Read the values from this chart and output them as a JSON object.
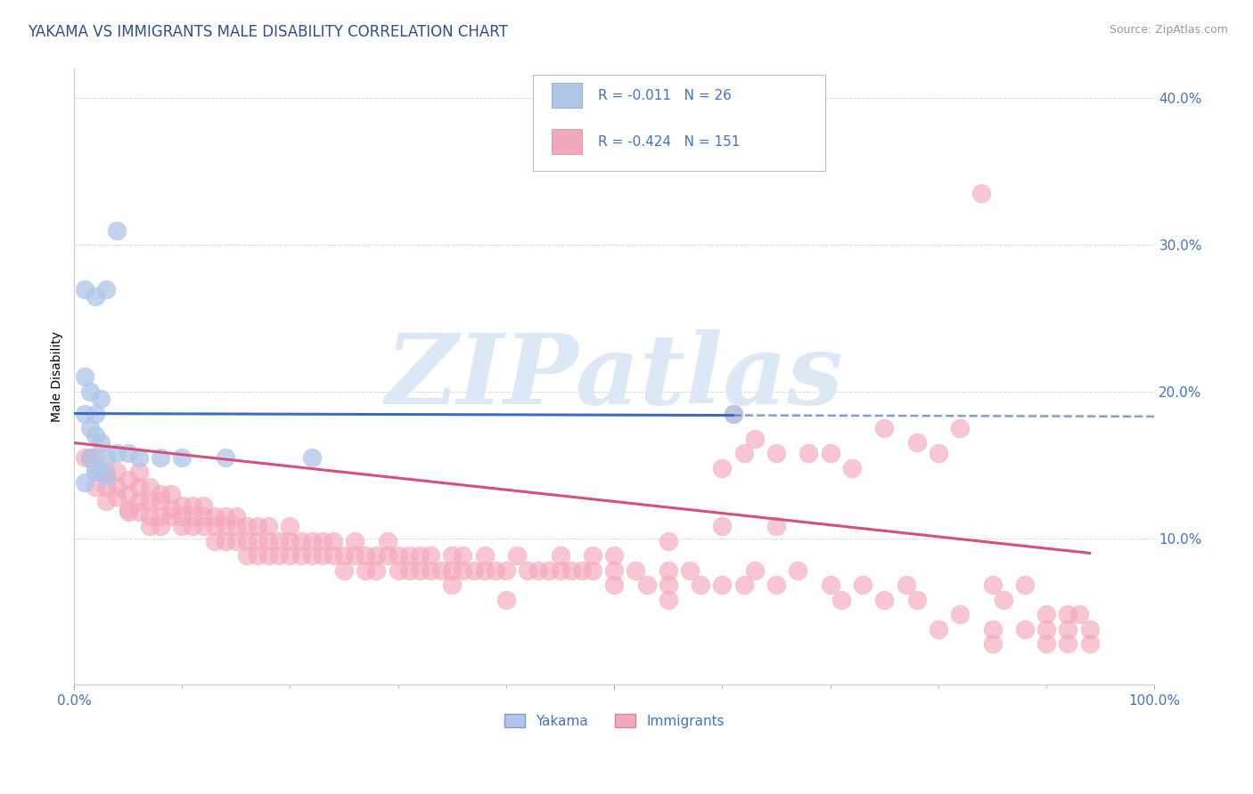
{
  "title": "YAKAMA VS IMMIGRANTS MALE DISABILITY CORRELATION CHART",
  "source": "Source: ZipAtlas.com",
  "ylabel": "Male Disability",
  "xlim": [
    0,
    1.0
  ],
  "ylim": [
    0,
    0.42
  ],
  "legend_r_yakama": "-0.011",
  "legend_n_yakama": "26",
  "legend_r_immigrants": "-0.424",
  "legend_n_immigrants": "151",
  "yakama_color": "#aec6e8",
  "immigrants_color": "#f4a8bb",
  "yakama_line_color": "#3B6BC4",
  "immigrants_line_color": "#D94F7A",
  "title_color": "#2F4F8F",
  "source_color": "#999999",
  "tick_color": "#4472C4",
  "watermark": "ZIPatlas",
  "watermark_color": "#dce8f5",
  "yakama_line_start": 0.0,
  "yakama_line_end_solid": 0.61,
  "yakama_line_y_at_0": 0.185,
  "yakama_line_y_at_1": 0.183,
  "immigrants_line_y_at_0": 0.165,
  "immigrants_line_y_at_1": 0.085,
  "yakama_scatter": [
    [
      0.02,
      0.185
    ],
    [
      0.04,
      0.31
    ],
    [
      0.03,
      0.27
    ],
    [
      0.01,
      0.27
    ],
    [
      0.02,
      0.265
    ],
    [
      0.01,
      0.21
    ],
    [
      0.015,
      0.2
    ],
    [
      0.025,
      0.195
    ],
    [
      0.01,
      0.185
    ],
    [
      0.015,
      0.175
    ],
    [
      0.02,
      0.17
    ],
    [
      0.025,
      0.165
    ],
    [
      0.015,
      0.155
    ],
    [
      0.03,
      0.155
    ],
    [
      0.02,
      0.148
    ],
    [
      0.04,
      0.158
    ],
    [
      0.05,
      0.158
    ],
    [
      0.02,
      0.145
    ],
    [
      0.01,
      0.138
    ],
    [
      0.03,
      0.142
    ],
    [
      0.06,
      0.155
    ],
    [
      0.08,
      0.155
    ],
    [
      0.1,
      0.155
    ],
    [
      0.14,
      0.155
    ],
    [
      0.22,
      0.155
    ],
    [
      0.61,
      0.185
    ]
  ],
  "immigrants_scatter": [
    [
      0.01,
      0.155
    ],
    [
      0.015,
      0.155
    ],
    [
      0.02,
      0.155
    ],
    [
      0.025,
      0.145
    ],
    [
      0.03,
      0.145
    ],
    [
      0.03,
      0.135
    ],
    [
      0.04,
      0.135
    ],
    [
      0.04,
      0.145
    ],
    [
      0.05,
      0.14
    ],
    [
      0.05,
      0.13
    ],
    [
      0.05,
      0.12
    ],
    [
      0.06,
      0.135
    ],
    [
      0.06,
      0.125
    ],
    [
      0.06,
      0.145
    ],
    [
      0.07,
      0.125
    ],
    [
      0.07,
      0.135
    ],
    [
      0.07,
      0.115
    ],
    [
      0.08,
      0.125
    ],
    [
      0.08,
      0.115
    ],
    [
      0.08,
      0.13
    ],
    [
      0.09,
      0.12
    ],
    [
      0.09,
      0.115
    ],
    [
      0.09,
      0.13
    ],
    [
      0.1,
      0.115
    ],
    [
      0.1,
      0.122
    ],
    [
      0.1,
      0.108
    ],
    [
      0.11,
      0.115
    ],
    [
      0.11,
      0.122
    ],
    [
      0.11,
      0.108
    ],
    [
      0.12,
      0.115
    ],
    [
      0.12,
      0.108
    ],
    [
      0.12,
      0.122
    ],
    [
      0.13,
      0.108
    ],
    [
      0.13,
      0.115
    ],
    [
      0.13,
      0.098
    ],
    [
      0.14,
      0.108
    ],
    [
      0.14,
      0.115
    ],
    [
      0.14,
      0.098
    ],
    [
      0.15,
      0.108
    ],
    [
      0.15,
      0.098
    ],
    [
      0.15,
      0.115
    ],
    [
      0.16,
      0.098
    ],
    [
      0.16,
      0.108
    ],
    [
      0.16,
      0.088
    ],
    [
      0.17,
      0.098
    ],
    [
      0.17,
      0.108
    ],
    [
      0.17,
      0.088
    ],
    [
      0.18,
      0.098
    ],
    [
      0.18,
      0.088
    ],
    [
      0.18,
      0.108
    ],
    [
      0.19,
      0.098
    ],
    [
      0.19,
      0.088
    ],
    [
      0.2,
      0.098
    ],
    [
      0.2,
      0.088
    ],
    [
      0.2,
      0.108
    ],
    [
      0.21,
      0.098
    ],
    [
      0.21,
      0.088
    ],
    [
      0.22,
      0.098
    ],
    [
      0.22,
      0.088
    ],
    [
      0.23,
      0.088
    ],
    [
      0.23,
      0.098
    ],
    [
      0.24,
      0.088
    ],
    [
      0.24,
      0.098
    ],
    [
      0.25,
      0.088
    ],
    [
      0.25,
      0.078
    ],
    [
      0.26,
      0.088
    ],
    [
      0.26,
      0.098
    ],
    [
      0.27,
      0.088
    ],
    [
      0.27,
      0.078
    ],
    [
      0.28,
      0.088
    ],
    [
      0.28,
      0.078
    ],
    [
      0.29,
      0.088
    ],
    [
      0.29,
      0.098
    ],
    [
      0.3,
      0.088
    ],
    [
      0.3,
      0.078
    ],
    [
      0.31,
      0.088
    ],
    [
      0.31,
      0.078
    ],
    [
      0.32,
      0.078
    ],
    [
      0.32,
      0.088
    ],
    [
      0.33,
      0.078
    ],
    [
      0.33,
      0.088
    ],
    [
      0.34,
      0.078
    ],
    [
      0.35,
      0.088
    ],
    [
      0.35,
      0.078
    ],
    [
      0.36,
      0.078
    ],
    [
      0.36,
      0.088
    ],
    [
      0.37,
      0.078
    ],
    [
      0.38,
      0.078
    ],
    [
      0.38,
      0.088
    ],
    [
      0.39,
      0.078
    ],
    [
      0.4,
      0.078
    ],
    [
      0.41,
      0.088
    ],
    [
      0.42,
      0.078
    ],
    [
      0.43,
      0.078
    ],
    [
      0.44,
      0.078
    ],
    [
      0.45,
      0.088
    ],
    [
      0.45,
      0.078
    ],
    [
      0.46,
      0.078
    ],
    [
      0.47,
      0.078
    ],
    [
      0.48,
      0.088
    ],
    [
      0.48,
      0.078
    ],
    [
      0.5,
      0.078
    ],
    [
      0.5,
      0.088
    ],
    [
      0.52,
      0.078
    ],
    [
      0.53,
      0.068
    ],
    [
      0.55,
      0.078
    ],
    [
      0.55,
      0.068
    ],
    [
      0.57,
      0.078
    ],
    [
      0.58,
      0.068
    ],
    [
      0.6,
      0.068
    ],
    [
      0.61,
      0.185
    ],
    [
      0.62,
      0.158
    ],
    [
      0.63,
      0.168
    ],
    [
      0.65,
      0.158
    ],
    [
      0.62,
      0.068
    ],
    [
      0.63,
      0.078
    ],
    [
      0.65,
      0.068
    ],
    [
      0.67,
      0.078
    ],
    [
      0.7,
      0.068
    ],
    [
      0.71,
      0.058
    ],
    [
      0.73,
      0.068
    ],
    [
      0.75,
      0.058
    ],
    [
      0.77,
      0.068
    ],
    [
      0.78,
      0.058
    ],
    [
      0.8,
      0.038
    ],
    [
      0.82,
      0.048
    ],
    [
      0.75,
      0.175
    ],
    [
      0.78,
      0.165
    ],
    [
      0.82,
      0.175
    ],
    [
      0.85,
      0.068
    ],
    [
      0.86,
      0.058
    ],
    [
      0.88,
      0.068
    ],
    [
      0.9,
      0.038
    ],
    [
      0.88,
      0.038
    ],
    [
      0.9,
      0.048
    ],
    [
      0.92,
      0.038
    ],
    [
      0.93,
      0.048
    ],
    [
      0.55,
      0.058
    ],
    [
      0.4,
      0.058
    ],
    [
      0.35,
      0.068
    ],
    [
      0.84,
      0.335
    ],
    [
      0.85,
      0.038
    ],
    [
      0.92,
      0.048
    ],
    [
      0.02,
      0.135
    ],
    [
      0.03,
      0.125
    ],
    [
      0.04,
      0.128
    ],
    [
      0.05,
      0.118
    ],
    [
      0.06,
      0.118
    ],
    [
      0.07,
      0.108
    ],
    [
      0.08,
      0.108
    ],
    [
      0.5,
      0.068
    ],
    [
      0.55,
      0.098
    ],
    [
      0.6,
      0.148
    ],
    [
      0.6,
      0.108
    ],
    [
      0.65,
      0.108
    ],
    [
      0.68,
      0.158
    ],
    [
      0.7,
      0.158
    ],
    [
      0.72,
      0.148
    ],
    [
      0.8,
      0.158
    ],
    [
      0.85,
      0.028
    ],
    [
      0.9,
      0.028
    ],
    [
      0.92,
      0.028
    ],
    [
      0.94,
      0.028
    ],
    [
      0.94,
      0.038
    ]
  ]
}
